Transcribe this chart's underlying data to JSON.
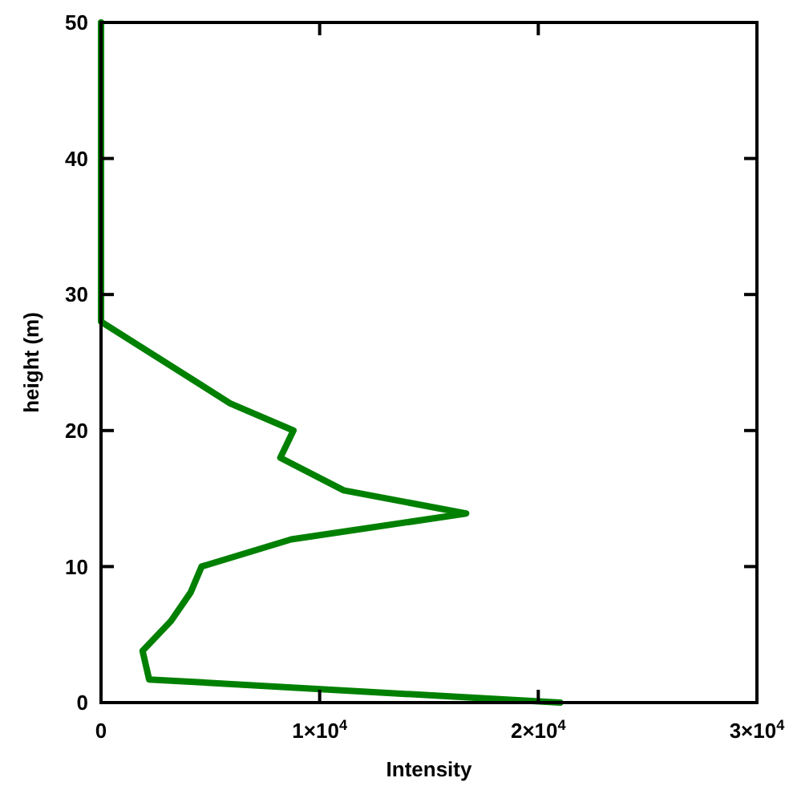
{
  "chart_data": {
    "type": "line",
    "xlabel": "Intensity",
    "ylabel": "height (m)",
    "x": [
      0,
      0,
      5900,
      8800,
      8200,
      11100,
      16700,
      8700,
      4600,
      4100,
      3200,
      1900,
      2200,
      21000
    ],
    "series": [
      {
        "color": "#008000",
        "values": [
          50,
          28,
          22,
          20,
          18,
          15.6,
          13.9,
          12,
          10,
          8.1,
          6,
          3.8,
          1.7,
          0
        ]
      }
    ],
    "xlim": [
      0,
      30000
    ],
    "xticks": [
      0,
      {
        "value": 10000,
        "label": "1×10$^{4}$"
      },
      {
        "value": 20000,
        "label": "2×10$^{4}$"
      },
      {
        "value": 30000,
        "label": "3×10$^{4}$"
      }
    ],
    "ylim": [
      0,
      50
    ],
    "yticks": [
      0,
      10,
      20,
      30,
      40,
      50
    ],
    "marker": "none",
    "line_style": "solid"
  }
}
